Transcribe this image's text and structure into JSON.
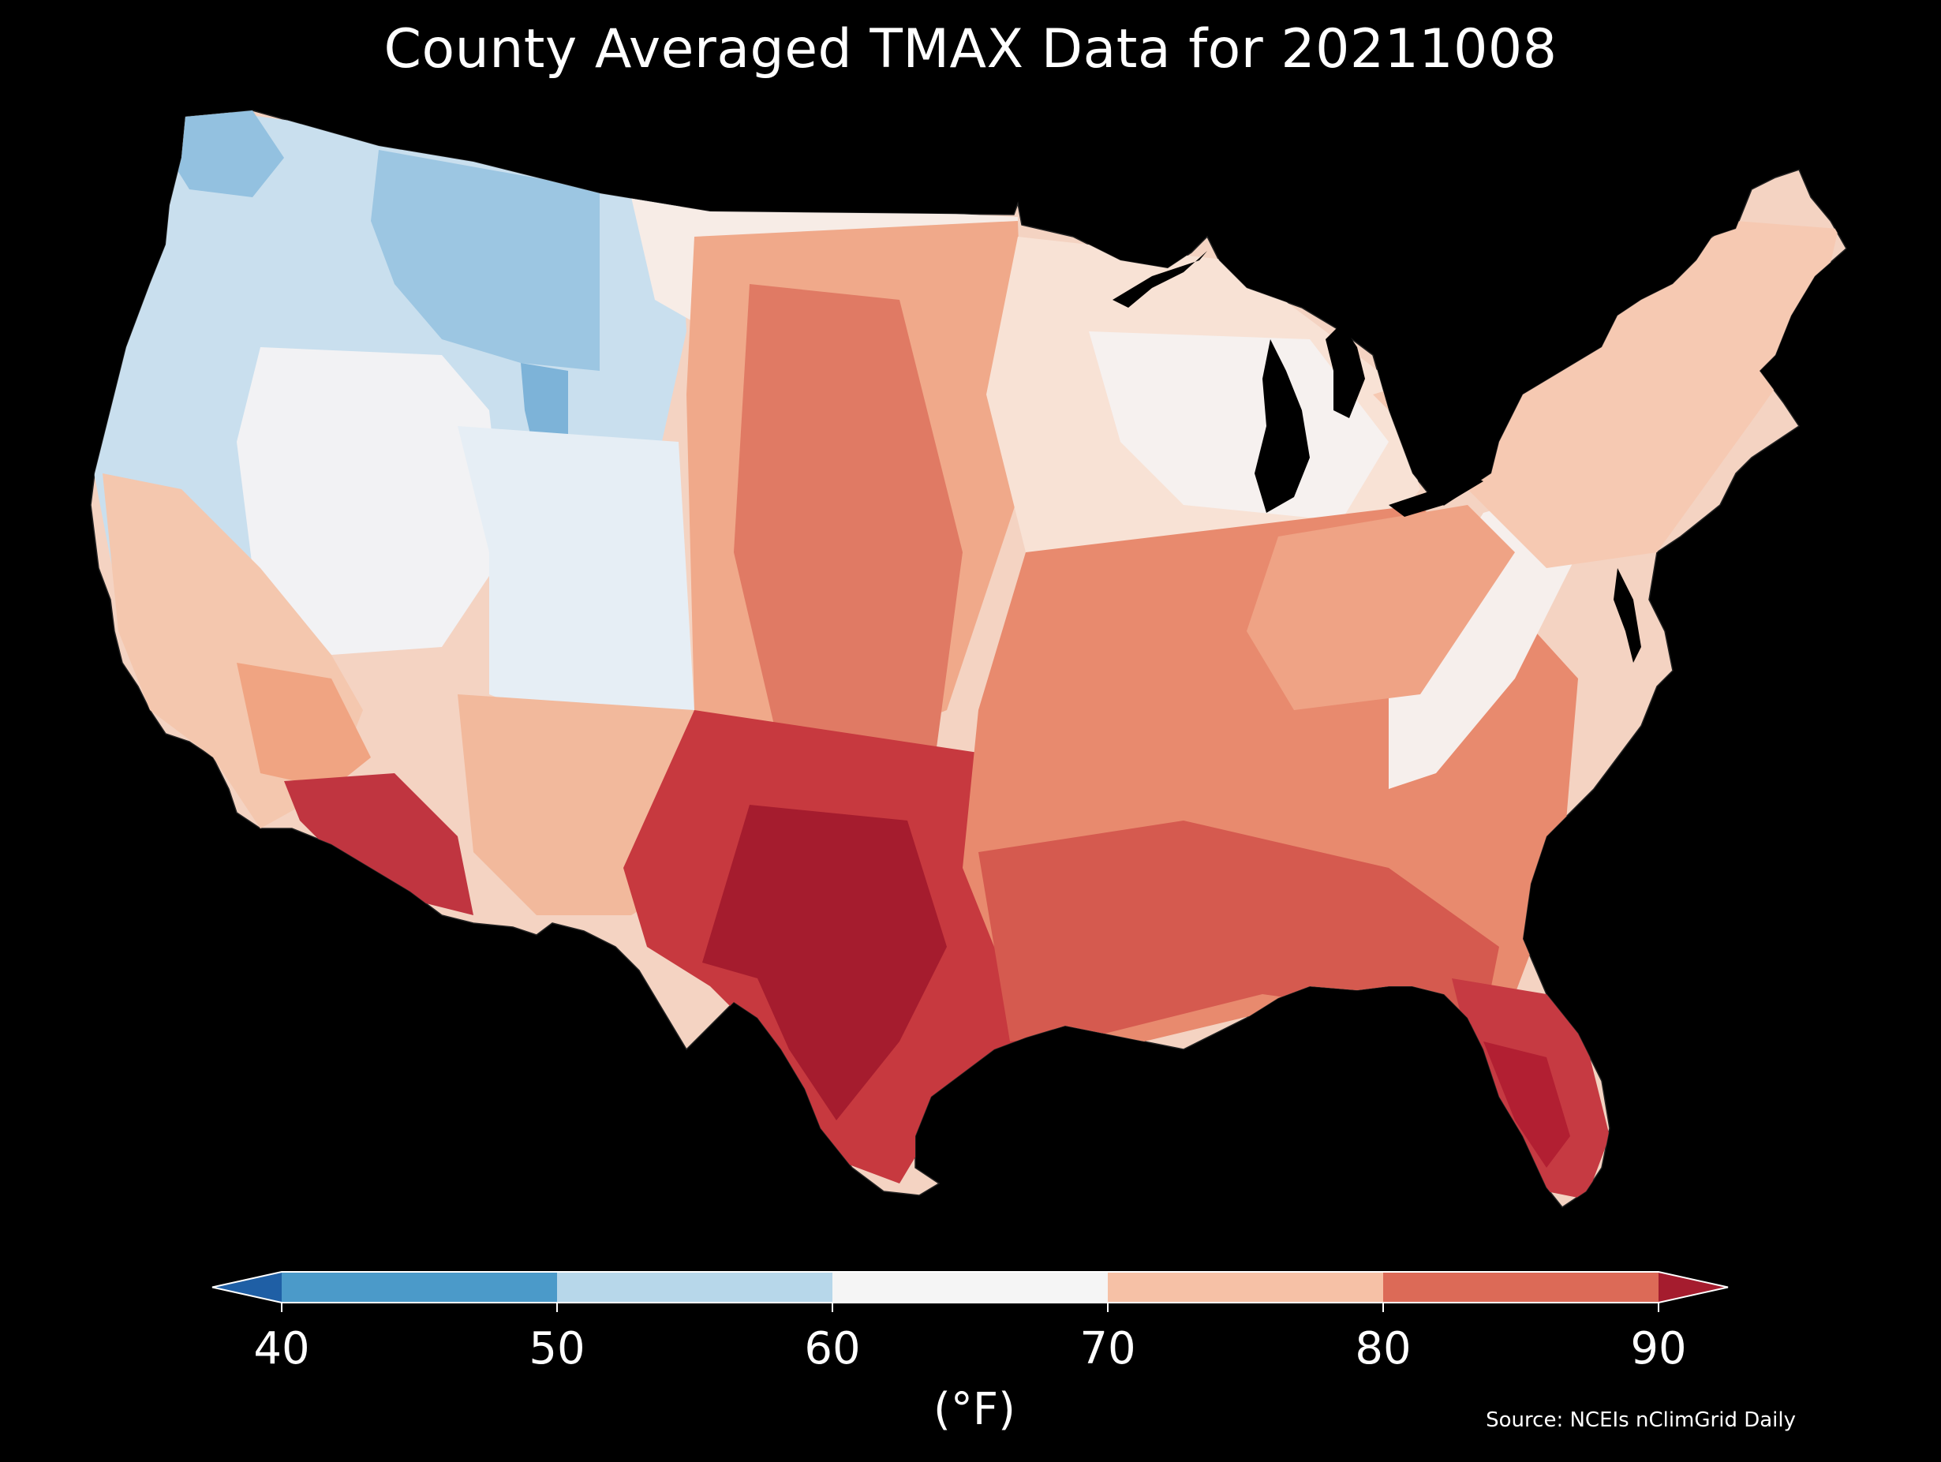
{
  "title": "County Averaged TMAX Data for 20211008",
  "colorbar": {
    "units": "(°F)",
    "ticks": [
      "40",
      "50",
      "60",
      "70",
      "80",
      "90"
    ],
    "bins": [
      {
        "from": 40,
        "to": 50,
        "color": "#4b9ac9"
      },
      {
        "from": 50,
        "to": 60,
        "color": "#b7d7ea"
      },
      {
        "from": 60,
        "to": 70,
        "color": "#f5f5f5"
      },
      {
        "from": 70,
        "to": 80,
        "color": "#f6c1a6"
      },
      {
        "from": 80,
        "to": 90,
        "color": "#dc6a57"
      }
    ],
    "under_color": "#1f5fa5",
    "over_color": "#a51c2e"
  },
  "source": "Source: NCEIs nClimGrid Daily",
  "legend_colors": {
    "cold": "#4b9ac9",
    "cool": "#b7d7ea",
    "mild": "#f5f5f5",
    "warm": "#f6c1a6",
    "hot": "#dc6a57",
    "hottest": "#a51c2e"
  }
}
